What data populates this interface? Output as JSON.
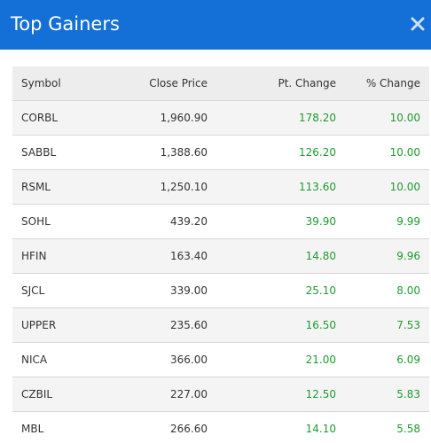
{
  "header": {
    "title": "Top Gainers",
    "close_icon": "close-icon"
  },
  "table": {
    "columns": [
      "Symbol",
      "Close Price",
      "Pt. Change",
      "% Change"
    ],
    "rows": [
      {
        "symbol": "CORBL",
        "close": "1,960.90",
        "pt": "178.20",
        "pct": "10.00"
      },
      {
        "symbol": "SABBL",
        "close": "1,388.60",
        "pt": "126.20",
        "pct": "10.00"
      },
      {
        "symbol": "RSML",
        "close": "1,250.10",
        "pt": "113.60",
        "pct": "10.00"
      },
      {
        "symbol": "SOHL",
        "close": "439.20",
        "pt": "39.90",
        "pct": "9.99"
      },
      {
        "symbol": "HFIN",
        "close": "163.40",
        "pt": "14.80",
        "pct": "9.96"
      },
      {
        "symbol": "SJCL",
        "close": "339.00",
        "pt": "25.10",
        "pct": "8.00"
      },
      {
        "symbol": "UPPER",
        "close": "235.60",
        "pt": "16.50",
        "pct": "7.53"
      },
      {
        "symbol": "NICA",
        "close": "366.00",
        "pt": "21.00",
        "pct": "6.09"
      },
      {
        "symbol": "CZBIL",
        "close": "227.00",
        "pt": "12.50",
        "pct": "5.83"
      },
      {
        "symbol": "MBL",
        "close": "266.60",
        "pt": "14.10",
        "pct": "5.58"
      }
    ]
  },
  "colors": {
    "header_bg": "#1470d6",
    "positive": "#1f9a2f",
    "row_alt": "#f4f4f4",
    "thead_bg": "#ededed"
  }
}
